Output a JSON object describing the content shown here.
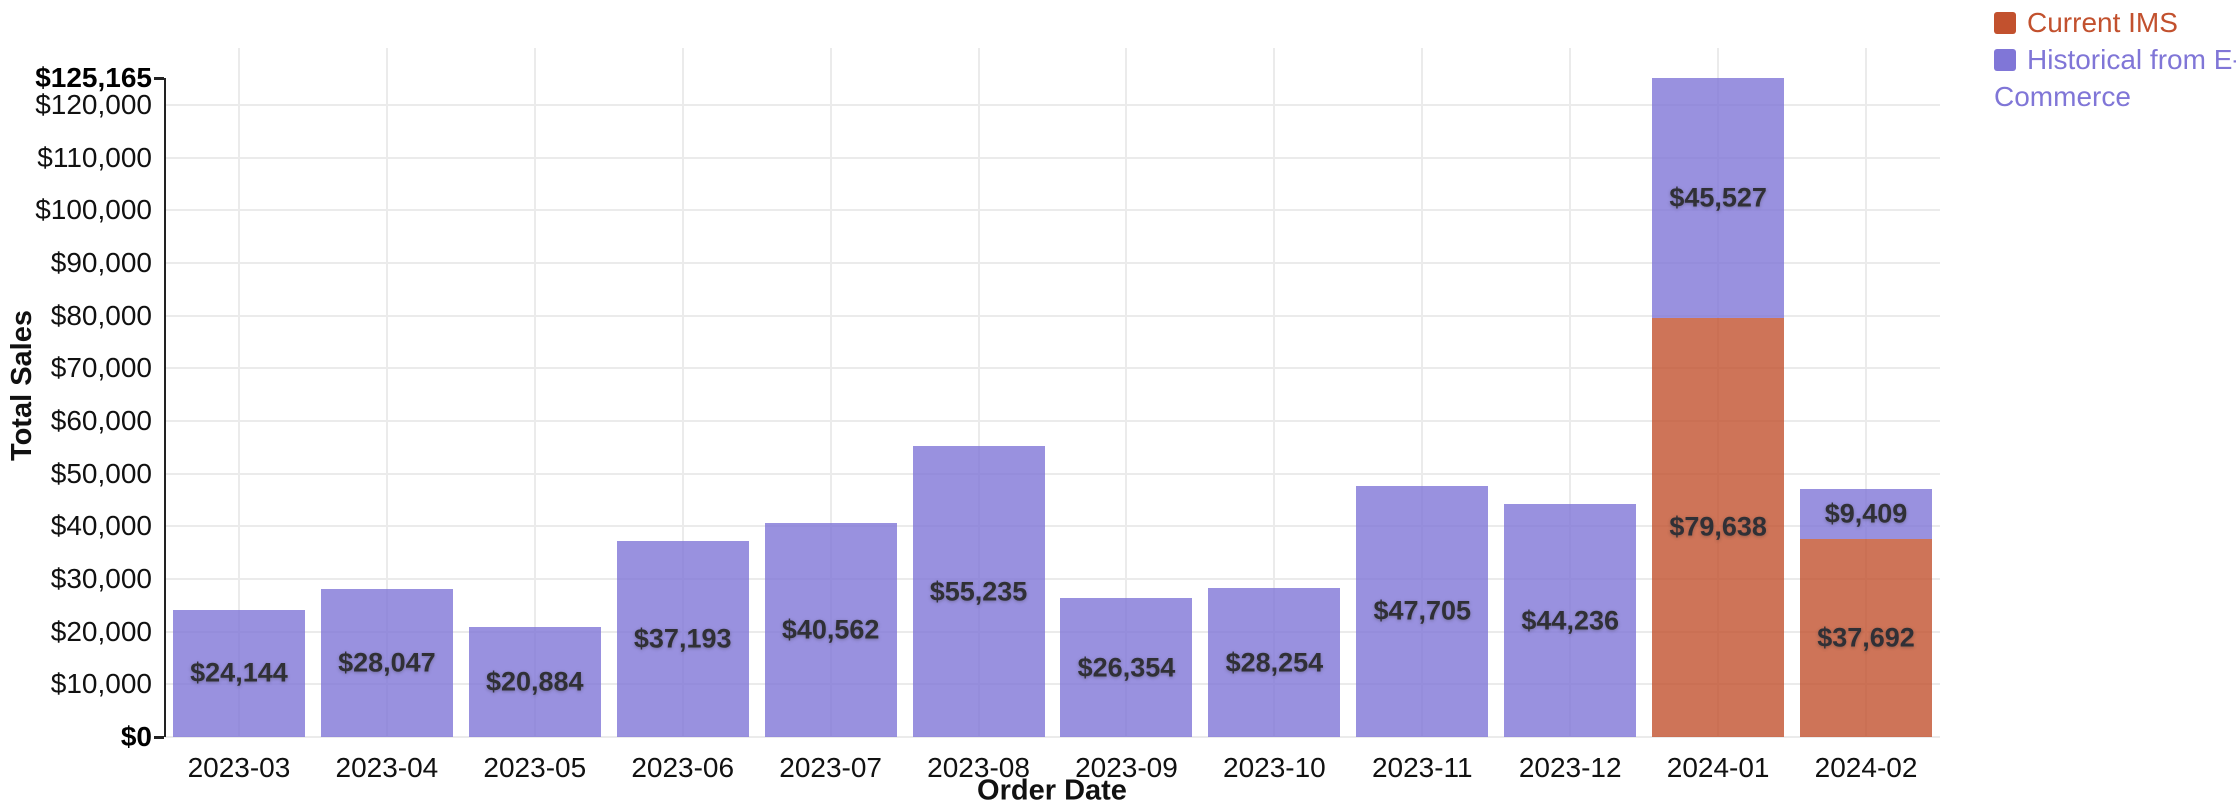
{
  "chart_data": {
    "type": "bar",
    "stacked": true,
    "title": "",
    "xlabel": "Order Date",
    "ylabel": "Total Sales",
    "grid": true,
    "legend_position": "top-right",
    "categories": [
      "2023-03",
      "2023-04",
      "2023-05",
      "2023-06",
      "2023-07",
      "2023-08",
      "2023-09",
      "2023-10",
      "2023-11",
      "2023-12",
      "2024-01",
      "2024-02"
    ],
    "series": [
      {
        "name": "Current IMS",
        "color": "#c2512e",
        "bar_opacity": 0.8,
        "values": [
          0,
          0,
          0,
          0,
          0,
          0,
          0,
          0,
          0,
          0,
          79638,
          37692
        ],
        "labels": [
          "",
          "",
          "",
          "",
          "",
          "",
          "",
          "",
          "",
          "",
          "$79,638",
          "$37,692"
        ]
      },
      {
        "name": "Historical from E-Commerce",
        "color": "#8076d7",
        "bar_opacity": 0.8,
        "values": [
          24144,
          28047,
          20884,
          37193,
          40562,
          55235,
          26354,
          28254,
          47705,
          44236,
          45527,
          9409
        ],
        "labels": [
          "$24,144",
          "$28,047",
          "$20,884",
          "$37,193",
          "$40,562",
          "$55,235",
          "$26,354",
          "$28,254",
          "$47,705",
          "$44,236",
          "$45,527",
          "$9,409"
        ]
      }
    ],
    "stack_totals": [
      24144,
      28047,
      20884,
      37193,
      40562,
      55235,
      26354,
      28254,
      47705,
      44236,
      125165,
      47101
    ],
    "y_axis": {
      "max_value": 125165,
      "ticks": [
        {
          "value": 0,
          "label": "$0",
          "bold": true,
          "mark": true
        },
        {
          "value": 10000,
          "label": "$10,000"
        },
        {
          "value": 20000,
          "label": "$20,000"
        },
        {
          "value": 30000,
          "label": "$30,000"
        },
        {
          "value": 40000,
          "label": "$40,000"
        },
        {
          "value": 50000,
          "label": "$50,000"
        },
        {
          "value": 60000,
          "label": "$60,000"
        },
        {
          "value": 70000,
          "label": "$70,000"
        },
        {
          "value": 80000,
          "label": "$80,000"
        },
        {
          "value": 90000,
          "label": "$90,000"
        },
        {
          "value": 100000,
          "label": "$100,000"
        },
        {
          "value": 110000,
          "label": "$110,000"
        },
        {
          "value": 120000,
          "label": "$120,000"
        },
        {
          "value": 125165,
          "label": "$125,165",
          "bold": true,
          "mark": true,
          "grid": false
        }
      ]
    },
    "colors": {
      "grid": "#ebebeb",
      "axis": "#222222",
      "tick_text": "#111111",
      "bar_label_text": "#303036",
      "background": "#ffffff"
    }
  }
}
